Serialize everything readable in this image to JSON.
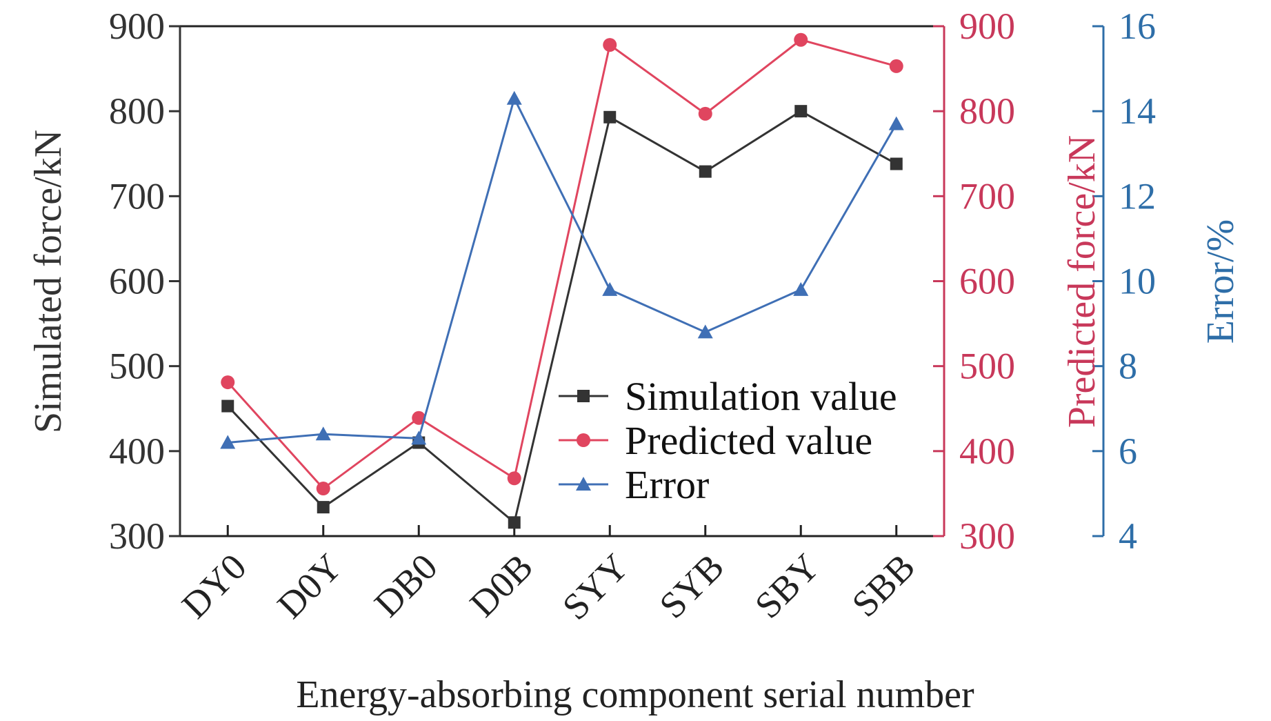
{
  "chart_data": {
    "type": "line",
    "categories": [
      "DY0",
      "D0Y",
      "DB0",
      "D0B",
      "SYY",
      "SYB",
      "SBY",
      "SBB"
    ],
    "xlabel": "Energy-absorbing component serial number",
    "left_axis": {
      "label": "Simulated force/kN",
      "range": [
        300,
        900
      ],
      "ticks": [
        "300",
        "400",
        "500",
        "600",
        "700",
        "800",
        "900"
      ]
    },
    "right_axis_1": {
      "label": "Predicted force/kN",
      "range": [
        300,
        900
      ],
      "ticks": [
        "300",
        "400",
        "500",
        "600",
        "700",
        "800",
        "900"
      ]
    },
    "right_axis_2": {
      "label": "Error/%",
      "range": [
        4,
        16
      ],
      "ticks": [
        "4",
        "6",
        "8",
        "10",
        "12",
        "14",
        "16"
      ]
    },
    "series": [
      {
        "name": "Simulation value",
        "axis": "left",
        "marker": "square",
        "color": "#333333",
        "values": [
          453,
          334,
          410,
          316,
          793,
          729,
          800,
          738
        ]
      },
      {
        "name": "Predicted value",
        "axis": "right_1",
        "marker": "circle",
        "color": "#e0455f",
        "values": [
          481,
          356,
          439,
          368,
          878,
          797,
          884,
          853
        ]
      },
      {
        "name": "Error",
        "axis": "right_2",
        "marker": "triangle",
        "color": "#3f6fb5",
        "values": [
          6.2,
          6.4,
          6.3,
          14.3,
          9.8,
          8.8,
          9.8,
          13.7
        ]
      }
    ],
    "colors": {
      "left_axis": "#333333",
      "right_axis_1": "#c8385a",
      "right_axis_2": "#2e6ea8"
    },
    "grid": false,
    "legend_position": "lower-right"
  }
}
